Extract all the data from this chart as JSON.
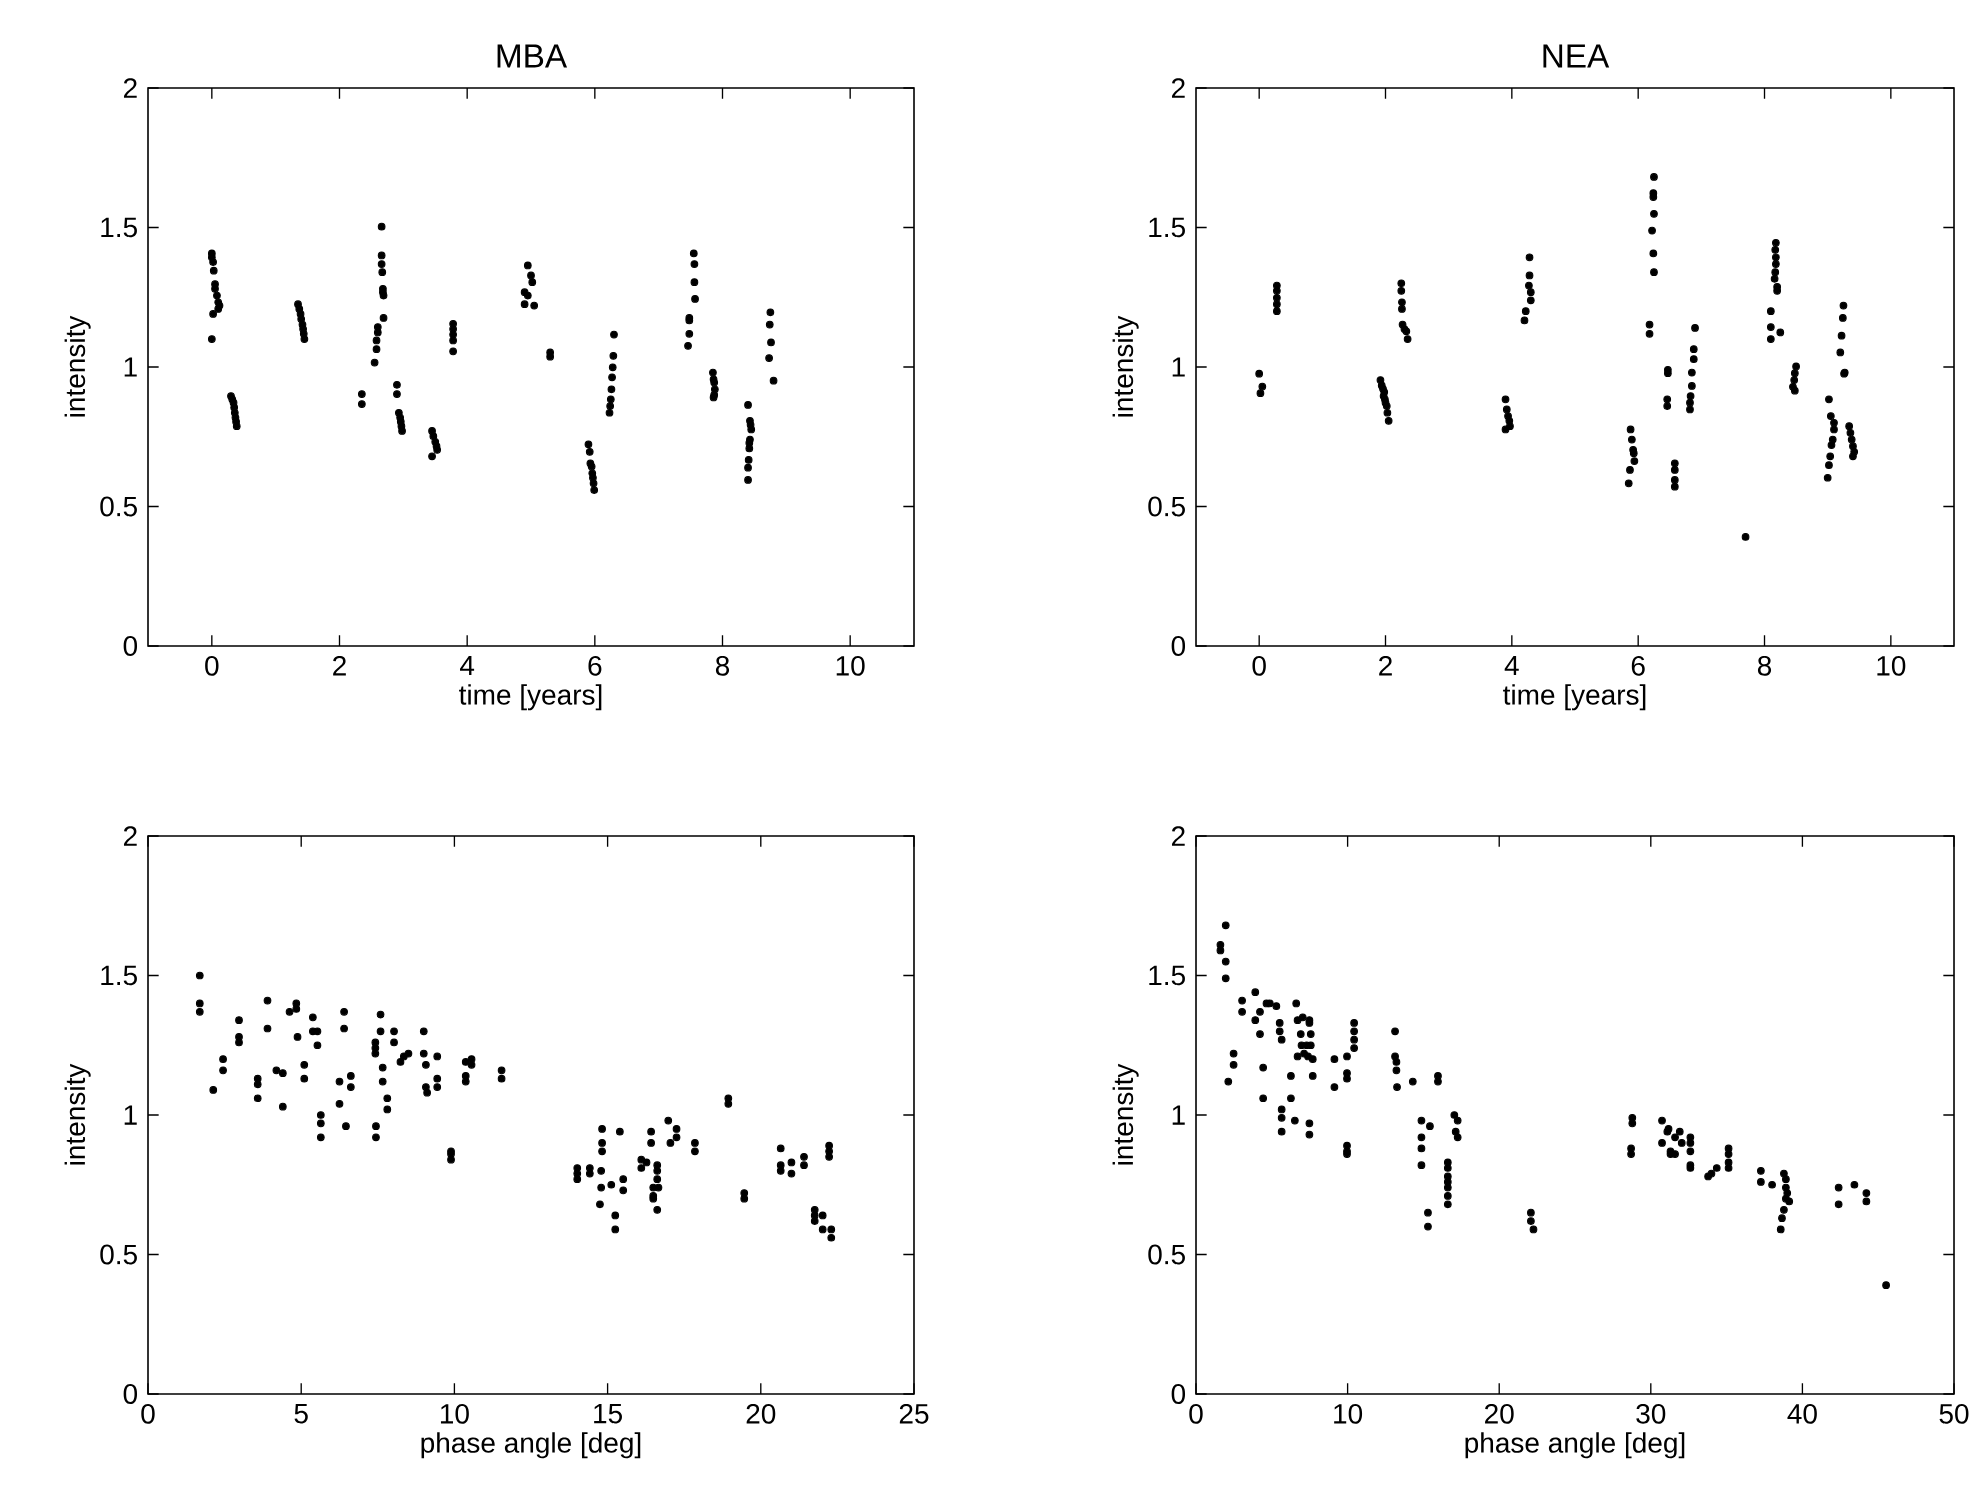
{
  "chart_data": [
    {
      "type": "scatter",
      "title": "MBA",
      "xlabel": "time [years]",
      "ylabel": "intensity",
      "xlim": [
        -1,
        11
      ],
      "ylim": [
        0,
        2
      ],
      "xticks": [
        0,
        2,
        4,
        6,
        8,
        10
      ],
      "yticks": [
        0,
        0.5,
        1,
        1.5,
        2
      ],
      "marker": "circle",
      "color": "#000000",
      "x": [
        0,
        0,
        0.02,
        0.03,
        0.05,
        0.05,
        0.08,
        0.1,
        0.12,
        0.1,
        0.02,
        0,
        0.3,
        0.32,
        0.34,
        0.35,
        0.36,
        0.37,
        0.38,
        0.39,
        1.35,
        1.37,
        1.39,
        1.4,
        1.42,
        1.43,
        1.44,
        1.45,
        2.35,
        2.35,
        2.66,
        2.66,
        2.66,
        2.67,
        2.68,
        2.68,
        2.69,
        2.69,
        2.6,
        2.6,
        2.58,
        2.58,
        2.55,
        2.9,
        2.9,
        2.93,
        2.95,
        2.96,
        2.97,
        2.98,
        3.45,
        3.47,
        3.5,
        3.52,
        3.53,
        3.45,
        3.78,
        3.78,
        3.78,
        3.78,
        3.78,
        4.95,
        5.0,
        5.02,
        4.9,
        4.95,
        4.9,
        5.05,
        5.3,
        5.3,
        5.9,
        5.92,
        5.93,
        5.95,
        5.96,
        5.97,
        5.98,
        5.99,
        6.3,
        6.29,
        6.28,
        6.27,
        6.26,
        6.25,
        6.24,
        6.23,
        7.55,
        7.56,
        7.56,
        7.57,
        7.48,
        7.48,
        7.48,
        7.46,
        7.85,
        7.86,
        7.87,
        7.88,
        7.87,
        7.86,
        8.4,
        8.43,
        8.44,
        8.45,
        8.43,
        8.42,
        8.42,
        8.41,
        8.4,
        8.4,
        8.75,
        8.74,
        8.76,
        8.73,
        8.8
      ],
      "values": [
        1.407,
        1.393,
        1.376,
        1.345,
        1.297,
        1.28,
        1.256,
        1.232,
        1.22,
        1.208,
        1.19,
        1.1,
        0.896,
        0.884,
        0.872,
        0.855,
        0.836,
        0.819,
        0.804,
        0.788,
        1.225,
        1.208,
        1.19,
        1.172,
        1.152,
        1.136,
        1.119,
        1.1,
        0.903,
        0.867,
        1.503,
        1.4,
        1.369,
        1.34,
        1.28,
        1.268,
        1.256,
        1.176,
        1.143,
        1.124,
        1.095,
        1.064,
        1.016,
        0.936,
        0.903,
        0.836,
        0.819,
        0.804,
        0.788,
        0.771,
        0.771,
        0.752,
        0.732,
        0.716,
        0.703,
        0.68,
        1.155,
        1.136,
        1.116,
        1.095,
        1.056,
        1.364,
        1.328,
        1.304,
        1.268,
        1.256,
        1.225,
        1.22,
        1.052,
        1.037,
        0.723,
        0.696,
        0.655,
        0.643,
        0.619,
        0.603,
        0.583,
        0.559,
        1.116,
        1.04,
        0.999,
        0.963,
        0.92,
        0.884,
        0.86,
        0.836,
        1.407,
        1.369,
        1.304,
        1.244,
        1.176,
        1.167,
        1.119,
        1.076,
        0.98,
        0.956,
        0.944,
        0.92,
        0.9,
        0.891,
        0.864,
        0.807,
        0.793,
        0.776,
        0.74,
        0.728,
        0.708,
        0.667,
        0.639,
        0.595,
        1.196,
        1.152,
        1.088,
        1.032,
        0.951
      ]
    },
    {
      "type": "scatter",
      "title": "NEA",
      "xlabel": "time [years]",
      "ylabel": "intensity",
      "xlim": [
        -1,
        11
      ],
      "ylim": [
        0,
        2
      ],
      "xticks": [
        0,
        2,
        4,
        6,
        8,
        10
      ],
      "yticks": [
        0,
        0.5,
        1,
        1.5,
        2
      ],
      "marker": "circle",
      "color": "#000000",
      "x": [
        0,
        0.05,
        0.02,
        0.28,
        0.28,
        0.28,
        0.28,
        0.28,
        1.92,
        1.94,
        1.96,
        1.98,
        1.97,
        1.99,
        2.0,
        2.02,
        2.03,
        2.05,
        2.25,
        2.25,
        2.26,
        2.26,
        2.27,
        2.3,
        2.33,
        2.35,
        3.9,
        3.92,
        3.94,
        3.96,
        3.97,
        3.9,
        4.28,
        4.28,
        4.27,
        4.3,
        4.3,
        4.22,
        4.2,
        5.88,
        5.9,
        5.92,
        5.93,
        5.94,
        5.87,
        5.85,
        6.25,
        6.24,
        6.24,
        6.25,
        6.22,
        6.24,
        6.25,
        6.18,
        6.18,
        6.47,
        6.47,
        6.46,
        6.46,
        6.58,
        6.58,
        6.58,
        6.58,
        6.9,
        6.88,
        6.88,
        6.85,
        6.85,
        6.83,
        6.82,
        6.82,
        7.7,
        8.18,
        8.17,
        8.18,
        8.18,
        8.17,
        8.16,
        8.2,
        8.2,
        8.1,
        8.1,
        8.25,
        8.1,
        8.5,
        8.48,
        8.47,
        8.45,
        8.48,
        9.02,
        9.05,
        9.1,
        9.1,
        9.08,
        9.06,
        9.04,
        9.02,
        9.0,
        9.25,
        9.24,
        9.22,
        9.2,
        9.27,
        9.26,
        9.34,
        9.36,
        9.38,
        9.4,
        9.42,
        9.4
      ],
      "values": [
        0.976,
        0.93,
        0.906,
        1.292,
        1.273,
        1.248,
        1.225,
        1.2,
        0.953,
        0.934,
        0.922,
        0.91,
        0.896,
        0.884,
        0.872,
        0.86,
        0.836,
        0.807,
        1.3,
        1.273,
        1.232,
        1.208,
        1.152,
        1.136,
        1.128,
        1.1,
        0.884,
        0.848,
        0.824,
        0.807,
        0.788,
        0.776,
        1.393,
        1.328,
        1.292,
        1.268,
        1.239,
        1.2,
        1.167,
        0.776,
        0.74,
        0.703,
        0.691,
        0.663,
        0.631,
        0.583,
        1.681,
        1.623,
        1.609,
        1.549,
        1.489,
        1.407,
        1.34,
        1.152,
        1.119,
        0.99,
        0.978,
        0.884,
        0.86,
        0.655,
        0.631,
        0.595,
        0.571,
        1.14,
        1.064,
        1.028,
        0.98,
        0.932,
        0.896,
        0.872,
        0.848,
        0.391,
        1.445,
        1.42,
        1.393,
        1.369,
        1.34,
        1.316,
        1.287,
        1.273,
        1.2,
        1.143,
        1.124,
        1.1,
        1.002,
        0.978,
        0.953,
        0.929,
        0.915,
        0.884,
        0.824,
        0.8,
        0.776,
        0.74,
        0.72,
        0.68,
        0.648,
        0.603,
        1.22,
        1.176,
        1.112,
        1.052,
        0.98,
        0.976,
        0.788,
        0.764,
        0.74,
        0.716,
        0.696,
        0.68
      ]
    },
    {
      "type": "scatter",
      "xlabel": "phase angle [deg]",
      "ylabel": "intensity",
      "xlim": [
        0,
        25
      ],
      "ylim": [
        0,
        2
      ],
      "xticks": [
        0,
        5,
        10,
        15,
        20,
        25
      ],
      "yticks": [
        0,
        0.5,
        1,
        1.5,
        2
      ],
      "marker": "circle",
      "color": "#000000",
      "x": [
        1.69,
        1.69,
        1.69,
        2.13,
        2.45,
        2.45,
        2.97,
        2.97,
        2.97,
        3.58,
        3.58,
        3.58,
        3.9,
        3.9,
        4.19,
        4.4,
        4.4,
        4.62,
        4.84,
        4.84,
        4.88,
        5.1,
        5.1,
        5.38,
        5.38,
        5.53,
        5.53,
        5.64,
        5.64,
        5.64,
        6.25,
        6.25,
        6.4,
        6.4,
        6.46,
        6.62,
        6.62,
        7.42,
        7.42,
        7.42,
        7.44,
        7.44,
        7.59,
        7.59,
        7.66,
        7.66,
        7.81,
        7.81,
        8.03,
        8.03,
        8.24,
        8.35,
        8.5,
        9.0,
        9.0,
        9.07,
        9.07,
        9.11,
        9.44,
        9.44,
        9.44,
        9.89,
        9.89,
        9.89,
        10.37,
        10.37,
        10.37,
        10.56,
        10.56,
        11.54,
        11.54,
        14.01,
        14.01,
        14.01,
        14.42,
        14.42,
        14.79,
        14.79,
        14.75,
        14.82,
        14.82,
        14.82,
        15.12,
        15.25,
        15.25,
        15.4,
        15.51,
        15.51,
        16.1,
        16.1,
        16.27,
        16.42,
        16.42,
        16.49,
        16.49,
        16.49,
        16.62,
        16.62,
        16.62,
        16.62,
        16.66,
        16.98,
        17.05,
        17.25,
        17.25,
        17.85,
        17.85,
        18.94,
        18.94,
        19.46,
        19.46,
        20.65,
        20.65,
        20.65,
        21.0,
        21.0,
        21.41,
        21.41,
        21.76,
        21.76,
        21.76,
        22.02,
        22.02,
        22.23,
        22.23,
        22.23,
        22.3,
        22.3
      ],
      "values": [
        1.5,
        1.4,
        1.37,
        1.09,
        1.2,
        1.16,
        1.34,
        1.28,
        1.26,
        1.13,
        1.11,
        1.06,
        1.41,
        1.31,
        1.16,
        1.15,
        1.03,
        1.37,
        1.4,
        1.38,
        1.28,
        1.18,
        1.13,
        1.35,
        1.3,
        1.3,
        1.25,
        1.0,
        0.97,
        0.92,
        1.12,
        1.04,
        1.37,
        1.31,
        0.96,
        1.14,
        1.1,
        1.26,
        1.24,
        1.22,
        0.96,
        0.92,
        1.36,
        1.3,
        1.17,
        1.12,
        1.06,
        1.02,
        1.3,
        1.26,
        1.19,
        1.21,
        1.22,
        1.3,
        1.22,
        1.18,
        1.1,
        1.08,
        1.21,
        1.13,
        1.1,
        0.87,
        0.86,
        0.84,
        1.19,
        1.14,
        1.12,
        1.2,
        1.18,
        1.16,
        1.13,
        0.81,
        0.79,
        0.77,
        0.81,
        0.79,
        0.8,
        0.74,
        0.68,
        0.95,
        0.9,
        0.87,
        0.75,
        0.64,
        0.59,
        0.94,
        0.77,
        0.73,
        0.84,
        0.81,
        0.83,
        0.94,
        0.9,
        0.74,
        0.71,
        0.7,
        0.82,
        0.8,
        0.77,
        0.66,
        0.74,
        0.98,
        0.9,
        0.95,
        0.92,
        0.9,
        0.87,
        1.06,
        1.04,
        0.72,
        0.7,
        0.88,
        0.82,
        0.8,
        0.83,
        0.79,
        0.85,
        0.82,
        0.66,
        0.64,
        0.62,
        0.64,
        0.59,
        0.89,
        0.87,
        0.85,
        0.59,
        0.56
      ]
    },
    {
      "type": "scatter",
      "xlabel": "phase angle [deg]",
      "ylabel": "intensity",
      "xlim": [
        0,
        50
      ],
      "ylim": [
        0,
        2
      ],
      "xticks": [
        0,
        10,
        20,
        30,
        40,
        50
      ],
      "yticks": [
        0,
        0.5,
        1,
        1.5,
        2
      ],
      "marker": "circle",
      "color": "#000000",
      "x": [
        1.61,
        1.61,
        1.96,
        1.96,
        1.96,
        2.13,
        2.48,
        2.48,
        3.04,
        3.04,
        3.91,
        3.91,
        4.22,
        4.22,
        4.43,
        4.43,
        4.65,
        4.87,
        5.3,
        5.52,
        5.52,
        5.65,
        5.65,
        5.65,
        5.65,
        6.26,
        6.26,
        6.52,
        6.61,
        6.7,
        6.7,
        6.91,
        6.96,
        7.04,
        7.13,
        7.3,
        7.39,
        7.48,
        7.48,
        7.57,
        7.57,
        7.7,
        7.7,
        7.48,
        7.48,
        9.13,
        9.13,
        9.96,
        9.96,
        9.96,
        9.96,
        9.96,
        9.96,
        10.43,
        10.43,
        10.43,
        10.43,
        13.13,
        13.13,
        13.22,
        13.22,
        13.26,
        14.3,
        14.87,
        14.87,
        14.87,
        14.87,
        15.3,
        15.3,
        15.43,
        15.96,
        15.96,
        16.61,
        16.61,
        16.61,
        16.61,
        16.61,
        16.61,
        16.61,
        17.04,
        17.13,
        17.26,
        17.26,
        22.09,
        22.09,
        22.26,
        28.78,
        28.78,
        28.7,
        28.7,
        30.74,
        30.74,
        31.09,
        31.17,
        31.3,
        31.3,
        31.6,
        31.6,
        31.91,
        32.04,
        32.61,
        32.61,
        32.61,
        32.61,
        32.61,
        33.78,
        34.0,
        34.35,
        35.13,
        35.13,
        35.13,
        35.13,
        37.26,
        37.26,
        38.0,
        38.57,
        38.65,
        38.78,
        38.78,
        38.91,
        38.91,
        38.91,
        39.0,
        39.13,
        42.39,
        42.39,
        43.43,
        44.22,
        44.22,
        45.52
      ],
      "values": [
        1.61,
        1.59,
        1.68,
        1.55,
        1.49,
        1.12,
        1.22,
        1.18,
        1.41,
        1.37,
        1.44,
        1.34,
        1.37,
        1.29,
        1.17,
        1.06,
        1.4,
        1.4,
        1.39,
        1.33,
        1.3,
        1.27,
        1.02,
        0.99,
        0.94,
        1.14,
        1.06,
        0.98,
        1.4,
        1.34,
        1.21,
        1.29,
        1.25,
        1.35,
        1.22,
        1.25,
        1.21,
        1.34,
        1.33,
        1.29,
        1.25,
        1.2,
        1.14,
        0.97,
        0.93,
        1.2,
        1.1,
        1.21,
        1.15,
        1.13,
        0.89,
        0.87,
        0.86,
        1.33,
        1.3,
        1.27,
        1.24,
        1.3,
        1.21,
        1.19,
        1.16,
        1.1,
        1.12,
        0.98,
        0.92,
        0.88,
        0.82,
        0.65,
        0.6,
        0.96,
        1.14,
        1.12,
        0.83,
        0.81,
        0.78,
        0.76,
        0.74,
        0.71,
        0.68,
        1.0,
        0.94,
        0.98,
        0.92,
        0.65,
        0.62,
        0.59,
        0.99,
        0.97,
        0.88,
        0.86,
        0.98,
        0.9,
        0.94,
        0.95,
        0.87,
        0.86,
        0.92,
        0.86,
        0.94,
        0.9,
        0.92,
        0.9,
        0.87,
        0.82,
        0.81,
        0.78,
        0.79,
        0.81,
        0.88,
        0.86,
        0.83,
        0.81,
        0.8,
        0.76,
        0.75,
        0.59,
        0.63,
        0.66,
        0.79,
        0.77,
        0.74,
        0.7,
        0.72,
        0.69,
        0.74,
        0.68,
        0.75,
        0.72,
        0.69,
        0.39
      ]
    }
  ]
}
